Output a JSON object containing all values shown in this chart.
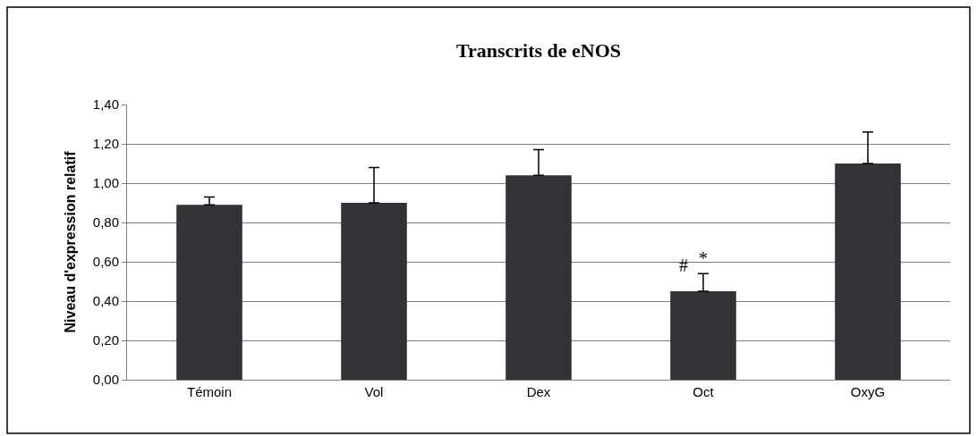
{
  "chart_data": {
    "type": "bar",
    "title": "Transcrits de eNOS",
    "ylabel": "Niveau d'expression relatif",
    "categories": [
      "Témoin",
      "Vol",
      "Dex",
      "Oct",
      "OxyG"
    ],
    "values": [
      0.89,
      0.9,
      1.04,
      0.45,
      1.1
    ],
    "color": "#333237",
    "errors": [
      [
        0.89,
        0.93
      ],
      [
        0.9,
        1.08
      ],
      [
        1.04,
        1.17
      ],
      [
        0.45,
        0.54
      ],
      [
        1.1,
        1.26
      ]
    ],
    "ylim": [
      0,
      1.4
    ],
    "yticks": [
      {
        "value": 0,
        "label": "0,00"
      },
      {
        "value": 0.2,
        "label": "0,20"
      },
      {
        "value": 0.4,
        "label": "0,40"
      },
      {
        "value": 0.6,
        "label": "0,60"
      },
      {
        "value": 0.8,
        "label": "0,80"
      },
      {
        "value": 1.0,
        "label": "1,00"
      },
      {
        "value": 1.2,
        "label": "1,20"
      },
      {
        "value": 1.4,
        "label": "1,40"
      }
    ],
    "grid": "y",
    "annotations": [
      {
        "text": "#",
        "x": "Oct",
        "y": 0.54
      },
      {
        "text": "*",
        "x": "Oct",
        "y": 0.54
      }
    ]
  }
}
